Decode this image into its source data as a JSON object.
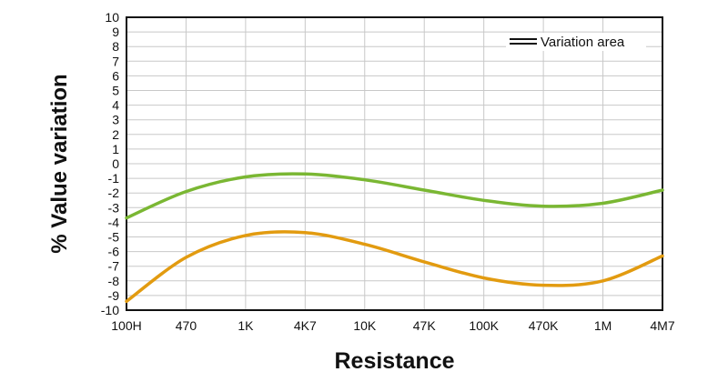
{
  "chart_data": {
    "type": "line",
    "title": "",
    "xlabel": "Resistance",
    "ylabel": "% Value variation",
    "categories": [
      "100H",
      "470",
      "1K",
      "4K7",
      "10K",
      "47K",
      "100K",
      "470K",
      "1M",
      "4M7"
    ],
    "ylim": [
      -10,
      10
    ],
    "yticks": [
      10,
      9,
      8,
      7,
      6,
      5,
      4,
      3,
      2,
      1,
      0,
      -1,
      -2,
      -3,
      -4,
      -5,
      -6,
      -7,
      -8,
      -9,
      -10
    ],
    "grid": true,
    "legend": {
      "position": "top-right",
      "entries": [
        "Variation area"
      ]
    },
    "series": [
      {
        "color": "#7ab733",
        "values": [
          -3.7,
          -1.9,
          -0.9,
          -0.7,
          -1.1,
          -1.8,
          -2.5,
          -2.9,
          -2.7,
          -1.8
        ]
      },
      {
        "color": "#e29b10",
        "values": [
          -9.4,
          -6.4,
          -4.9,
          -4.7,
          -5.5,
          -6.7,
          -7.8,
          -8.3,
          -8.0,
          -6.3
        ]
      }
    ]
  }
}
